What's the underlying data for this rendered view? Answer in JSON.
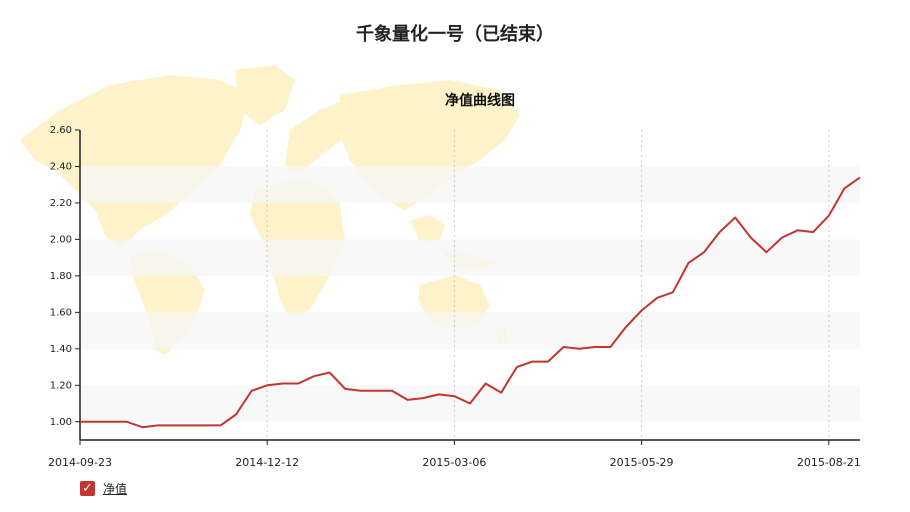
{
  "page": {
    "title": "千象量化一号（已结束）"
  },
  "legend": {
    "items": [
      {
        "label": "净值",
        "color": "#c23531",
        "checked": true
      }
    ]
  },
  "chart_data": {
    "type": "line",
    "title": "净值曲线图",
    "xlabel": "",
    "ylabel": "",
    "ylim": [
      0.9,
      2.6
    ],
    "yticks": [
      1.0,
      1.2,
      1.4,
      1.6,
      1.8,
      2.0,
      2.2,
      2.4,
      2.6
    ],
    "ytick_labels": [
      "1.00",
      "1.20",
      "1.40",
      "1.60",
      "1.80",
      "2.00",
      "2.20",
      "2.40",
      "2.60"
    ],
    "xtick_labels": [
      "2014-09-23",
      "2014-12-12",
      "2015-03-06",
      "2015-05-29",
      "2015-08-21"
    ],
    "xtick_index": [
      0,
      12,
      24,
      36,
      48
    ],
    "point_count": 51,
    "grid": true,
    "legend_position": "bottom-left",
    "series": [
      {
        "name": "净值",
        "color": "#c23531",
        "values": [
          1.0,
          1.0,
          1.0,
          1.0,
          0.97,
          0.98,
          0.98,
          0.98,
          0.98,
          0.98,
          1.04,
          1.17,
          1.2,
          1.21,
          1.21,
          1.25,
          1.27,
          1.18,
          1.17,
          1.17,
          1.17,
          1.12,
          1.13,
          1.15,
          1.14,
          1.1,
          1.21,
          1.16,
          1.3,
          1.33,
          1.33,
          1.41,
          1.4,
          1.41,
          1.41,
          1.52,
          1.61,
          1.68,
          1.71,
          1.87,
          1.93,
          2.04,
          2.12,
          2.01,
          1.93,
          2.01,
          2.05,
          2.04,
          2.13,
          2.28,
          2.34
        ]
      }
    ]
  }
}
